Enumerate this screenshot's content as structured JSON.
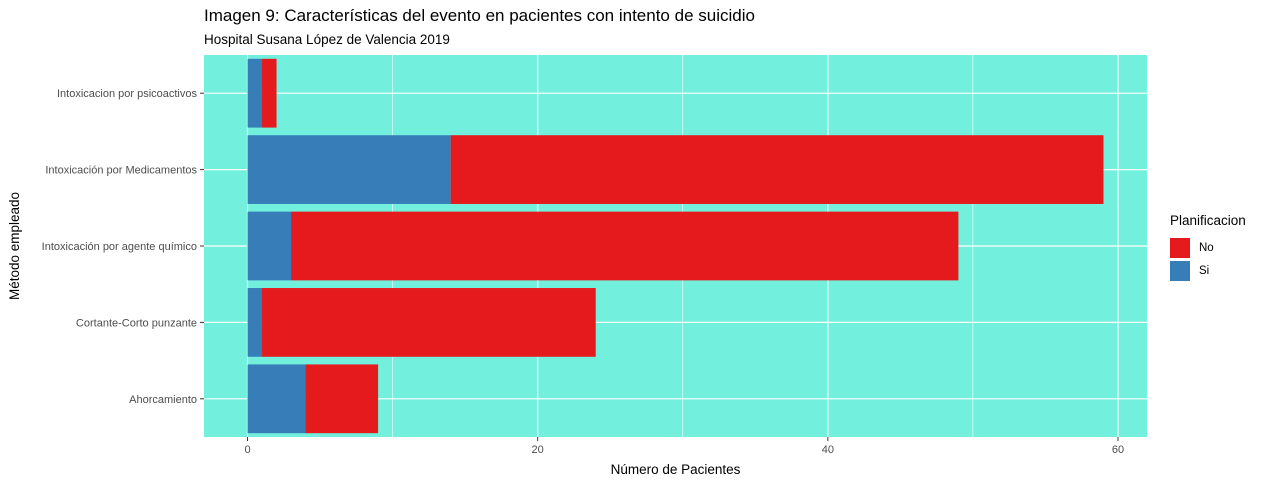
{
  "chart_data": {
    "type": "bar",
    "orientation": "horizontal",
    "stacked": true,
    "title": "Imagen 9: Características del evento en pacientes con intento de suicidio",
    "subtitle": "Hospital Susana López de Valencia 2019",
    "xlabel": "Número de Pacientes",
    "ylabel": "Método empleado",
    "categories": [
      "Intoxicacion por psicoactivos",
      "Intoxicación por Medicamentos",
      "Intoxicación por agente químico",
      "Cortante-Corto punzante",
      "Ahorcamiento"
    ],
    "series": [
      {
        "name": "Si",
        "color": "#377eb8",
        "values": [
          1,
          14,
          3,
          1,
          4
        ]
      },
      {
        "name": "No",
        "color": "#e41a1c",
        "values": [
          1,
          45,
          46,
          23,
          5
        ]
      }
    ],
    "xlim": [
      -3,
      62
    ],
    "xticks": [
      0,
      20,
      40,
      60
    ],
    "grid": true,
    "panel_background": "#72efdd",
    "legend": {
      "title": "Planificacion",
      "position": "right",
      "entries": [
        {
          "label": "No",
          "color": "#e41a1c"
        },
        {
          "label": "Si",
          "color": "#377eb8"
        }
      ]
    }
  }
}
